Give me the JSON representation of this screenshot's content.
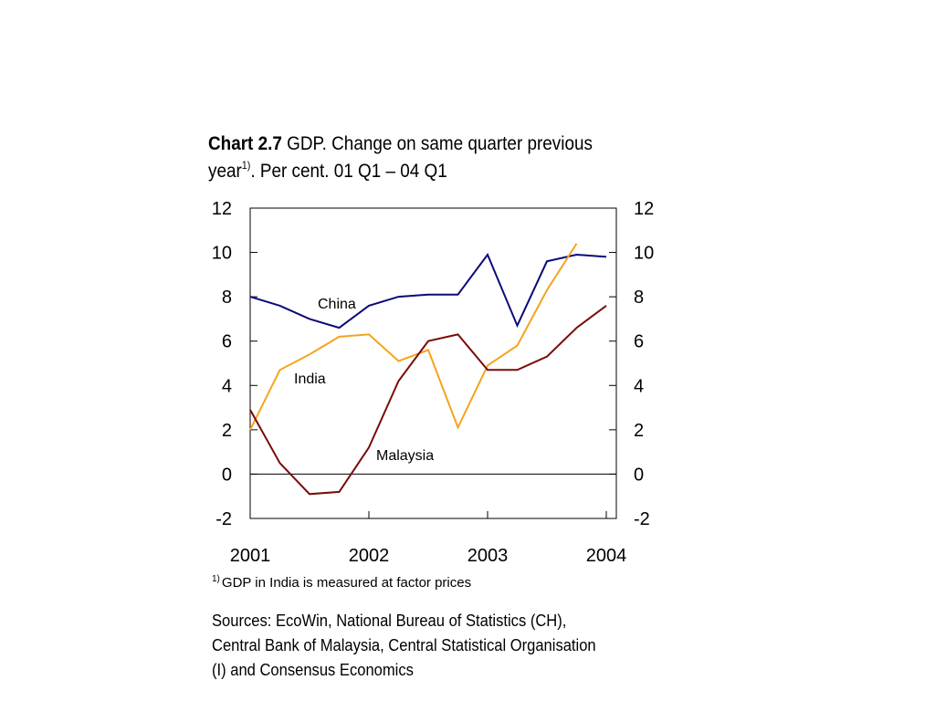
{
  "title": {
    "bold": "Chart 2.7",
    "line1_rest": " GDP. Change on same quarter previous",
    "line2_start": "year",
    "sup": "1)",
    "line2_rest": ". Per cent. 01 Q1 – 04 Q1"
  },
  "footnote": {
    "marker": "1)",
    "text": "GDP in India is measured at factor prices"
  },
  "sources": {
    "line1": "Sources: EcoWin, National Bureau of Statistics (CH),",
    "line2": "Central Bank of Malaysia, Central Statistical Organisation",
    "line3": "(I) and Consensus Economics"
  },
  "chart_data": {
    "type": "line",
    "x_labels": [
      "2001",
      "2002",
      "2003",
      "2004"
    ],
    "ylim": [
      -2,
      12
    ],
    "y_ticks": [
      -2,
      0,
      2,
      4,
      6,
      8,
      10,
      12
    ],
    "y_tick_labels": [
      "-2",
      "0",
      "2",
      "4",
      "6",
      "8",
      "10",
      "12"
    ],
    "quarters": [
      "2001 Q1",
      "2001 Q2",
      "2001 Q3",
      "2001 Q4",
      "2002 Q1",
      "2002 Q2",
      "2002 Q3",
      "2002 Q4",
      "2003 Q1",
      "2003 Q2",
      "2003 Q3",
      "2003 Q4",
      "2004 Q1"
    ],
    "grid": false,
    "series": [
      {
        "name": "China",
        "color": "#0a0a7a",
        "values": [
          8.0,
          7.6,
          7.0,
          6.6,
          7.6,
          8.0,
          8.1,
          8.1,
          9.9,
          6.7,
          9.6,
          9.9,
          9.8
        ]
      },
      {
        "name": "India",
        "color": "#f5a31c",
        "values": [
          2.0,
          4.7,
          5.4,
          6.2,
          6.3,
          5.1,
          5.6,
          2.1,
          4.9,
          5.8,
          8.3,
          10.4,
          null
        ]
      },
      {
        "name": "Malaysia",
        "color": "#7a0a0a",
        "values": [
          2.9,
          0.5,
          -0.9,
          -0.8,
          1.2,
          4.2,
          6.0,
          6.3,
          4.7,
          4.7,
          5.3,
          6.6,
          7.6
        ]
      }
    ]
  }
}
